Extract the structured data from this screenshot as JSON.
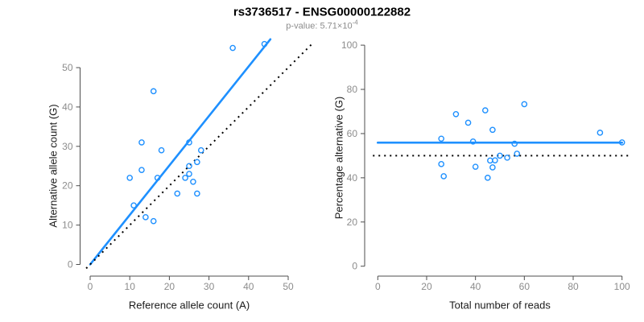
{
  "header": {
    "title": "rs3736517 - ENSG00000122882",
    "subtitle_prefix": "p-value: 5.71×10",
    "subtitle_exponent": "-4"
  },
  "colors": {
    "accent_blue": "#1E90FF",
    "dotted_black": "#000000",
    "axis_line": "#4d4d4d",
    "tick_label": "#8c8c8c",
    "axis_title": "#1a1a1a",
    "subtitle_gray": "#8c8c8c"
  },
  "chart_data": [
    {
      "id": "allele-counts-scatter",
      "type": "scatter",
      "xlabel": "Reference allele count (A)",
      "ylabel": "Alternative allele count (G)",
      "xlim": [
        0,
        50
      ],
      "ylim": [
        0,
        50
      ],
      "xticks": [
        0,
        10,
        20,
        30,
        40,
        50
      ],
      "yticks": [
        0,
        10,
        20,
        30,
        40,
        50
      ],
      "grid": false,
      "point_color": "#1E90FF",
      "points": [
        [
          36,
          55
        ],
        [
          44,
          56
        ],
        [
          16,
          44
        ],
        [
          13,
          31
        ],
        [
          18,
          29
        ],
        [
          25,
          31
        ],
        [
          28,
          29
        ],
        [
          27,
          26
        ],
        [
          25,
          25
        ],
        [
          25,
          23
        ],
        [
          24,
          22
        ],
        [
          26,
          21
        ],
        [
          22,
          18
        ],
        [
          27,
          18
        ],
        [
          13,
          24
        ],
        [
          10,
          22
        ],
        [
          17,
          22
        ],
        [
          11,
          15
        ],
        [
          14,
          12
        ],
        [
          16,
          11
        ]
      ],
      "lines": [
        {
          "name": "fit-line",
          "style": "solid",
          "color": "#1E90FF",
          "width": 2.6,
          "from": [
            0,
            0
          ],
          "to": [
            45.5,
            57.2
          ]
        },
        {
          "name": "identity-line",
          "style": "dotted",
          "color": "#000000",
          "width": 2,
          "from": [
            -1,
            -1
          ],
          "to": [
            56.5,
            56.5
          ]
        }
      ]
    },
    {
      "id": "percentage-vs-reads-scatter",
      "type": "scatter",
      "xlabel": "Total number of reads",
      "ylabel": "Percentage alternative (G)",
      "xlim": [
        0,
        100
      ],
      "ylim": [
        0,
        100
      ],
      "xticks": [
        0,
        20,
        40,
        60,
        80,
        100
      ],
      "yticks": [
        0,
        20,
        40,
        60,
        80,
        100
      ],
      "grid": false,
      "point_color": "#1E90FF",
      "points": [
        [
          91,
          60.4
        ],
        [
          100,
          56
        ],
        [
          60,
          73.3
        ],
        [
          44,
          70.5
        ],
        [
          47,
          61.7
        ],
        [
          56,
          55.4
        ],
        [
          57,
          50.9
        ],
        [
          53,
          49.1
        ],
        [
          50,
          50
        ],
        [
          48,
          47.9
        ],
        [
          46,
          47.8
        ],
        [
          47,
          44.7
        ],
        [
          40,
          45
        ],
        [
          45,
          40
        ],
        [
          37,
          64.9
        ],
        [
          32,
          68.8
        ],
        [
          39,
          56.4
        ],
        [
          26,
          57.7
        ],
        [
          26,
          46.2
        ],
        [
          27,
          40.7
        ]
      ],
      "lines": [
        {
          "name": "fit-line",
          "style": "solid",
          "color": "#1E90FF",
          "width": 2.6,
          "from": [
            0,
            55.9
          ],
          "to": [
            100,
            55.9
          ]
        },
        {
          "name": "null-line",
          "style": "dotted",
          "color": "#000000",
          "width": 2,
          "from": [
            -2,
            50
          ],
          "to": [
            103.5,
            50
          ]
        }
      ]
    }
  ]
}
